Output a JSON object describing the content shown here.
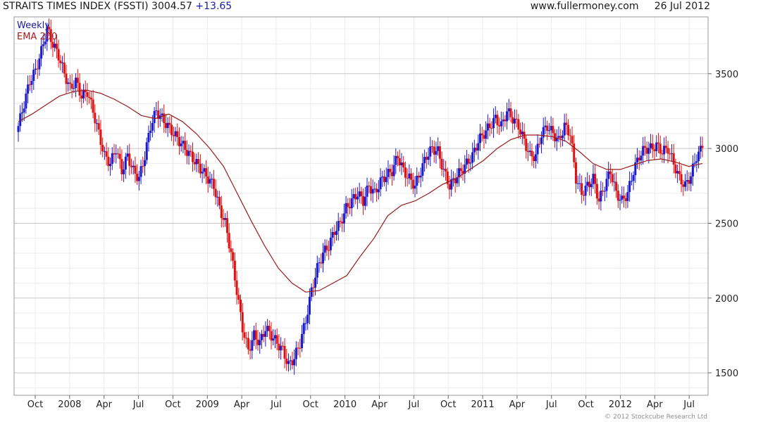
{
  "header": {
    "title": "STRAITS TIMES INDEX (FSSTI)",
    "last_value": "3004.57",
    "change": "+13.65",
    "website": "www.fullermoney.com",
    "date": "26 Jul 2012"
  },
  "legend": {
    "series1": "Weekly",
    "series2": "EMA 200"
  },
  "footer": {
    "copyright": "© 2012 Stockcube Research Ltd"
  },
  "colors": {
    "up": "#1a1ad0",
    "down": "#e01010",
    "ema": "#9a1a1a",
    "grid_major": "#c8c8c8",
    "grid_minor": "#ececec"
  },
  "chart_data": {
    "type": "candlestick",
    "title": "STRAITS TIMES INDEX (FSSTI)",
    "ylim": [
      1350,
      3880
    ],
    "y_ticks": [
      1500,
      2000,
      2500,
      3000,
      3500
    ],
    "x_ticks": [
      "Oct",
      "2008",
      "Apr",
      "Jul",
      "Oct",
      "2009",
      "Apr",
      "Jul",
      "Oct",
      "2010",
      "Apr",
      "Jul",
      "Oct",
      "2011",
      "Apr",
      "Jul",
      "Oct",
      "2012",
      "Apr",
      "Jul"
    ],
    "grid": true,
    "legend_position": "top-left",
    "series": [
      {
        "name": "Weekly",
        "note": "weekly closes (approximate)",
        "closes": [
          3150,
          3300,
          3450,
          3520,
          3650,
          3800,
          3700,
          3620,
          3500,
          3400,
          3450,
          3350,
          3380,
          3250,
          3100,
          2950,
          2900,
          3000,
          2850,
          2950,
          2850,
          2800,
          2950,
          3150,
          3250,
          3200,
          3150,
          3100,
          3050,
          3000,
          2950,
          2900,
          2850,
          2800,
          2750,
          2600,
          2500,
          2300,
          2050,
          1800,
          1650,
          1750,
          1700,
          1800,
          1750,
          1700,
          1650,
          1550,
          1600,
          1700,
          1850,
          2050,
          2200,
          2300,
          2350,
          2450,
          2500,
          2600,
          2650,
          2700,
          2650,
          2750,
          2700,
          2780,
          2820,
          2850,
          2950,
          2850,
          2800,
          2750,
          2850,
          2950,
          3000,
          2980,
          2850,
          2750,
          2800,
          2850,
          2900,
          2950,
          3050,
          3100,
          3150,
          3200,
          3150,
          3250,
          3200,
          3150,
          3050,
          2950,
          2950,
          3100,
          3150,
          3100,
          3050,
          3150,
          3100,
          2800,
          2700,
          2750,
          2800,
          2650,
          2750,
          2850,
          2700,
          2650,
          2700,
          2850,
          2950,
          3000,
          3000,
          3020,
          2980,
          3000,
          2900,
          2800,
          2750,
          2820,
          2950,
          3004.57
        ]
      },
      {
        "name": "EMA 200",
        "values": [
          3180,
          3230,
          3290,
          3350,
          3380,
          3390,
          3370,
          3330,
          3280,
          3220,
          3200,
          3230,
          3180,
          3100,
          3000,
          2880,
          2700,
          2520,
          2350,
          2200,
          2100,
          2040,
          2050,
          2100,
          2150,
          2280,
          2400,
          2550,
          2620,
          2650,
          2700,
          2760,
          2800,
          2860,
          2920,
          3000,
          3060,
          3090,
          3090,
          3080,
          3050,
          2980,
          2900,
          2860,
          2860,
          2890,
          2920,
          2930,
          2910,
          2880,
          2900
        ]
      }
    ]
  }
}
